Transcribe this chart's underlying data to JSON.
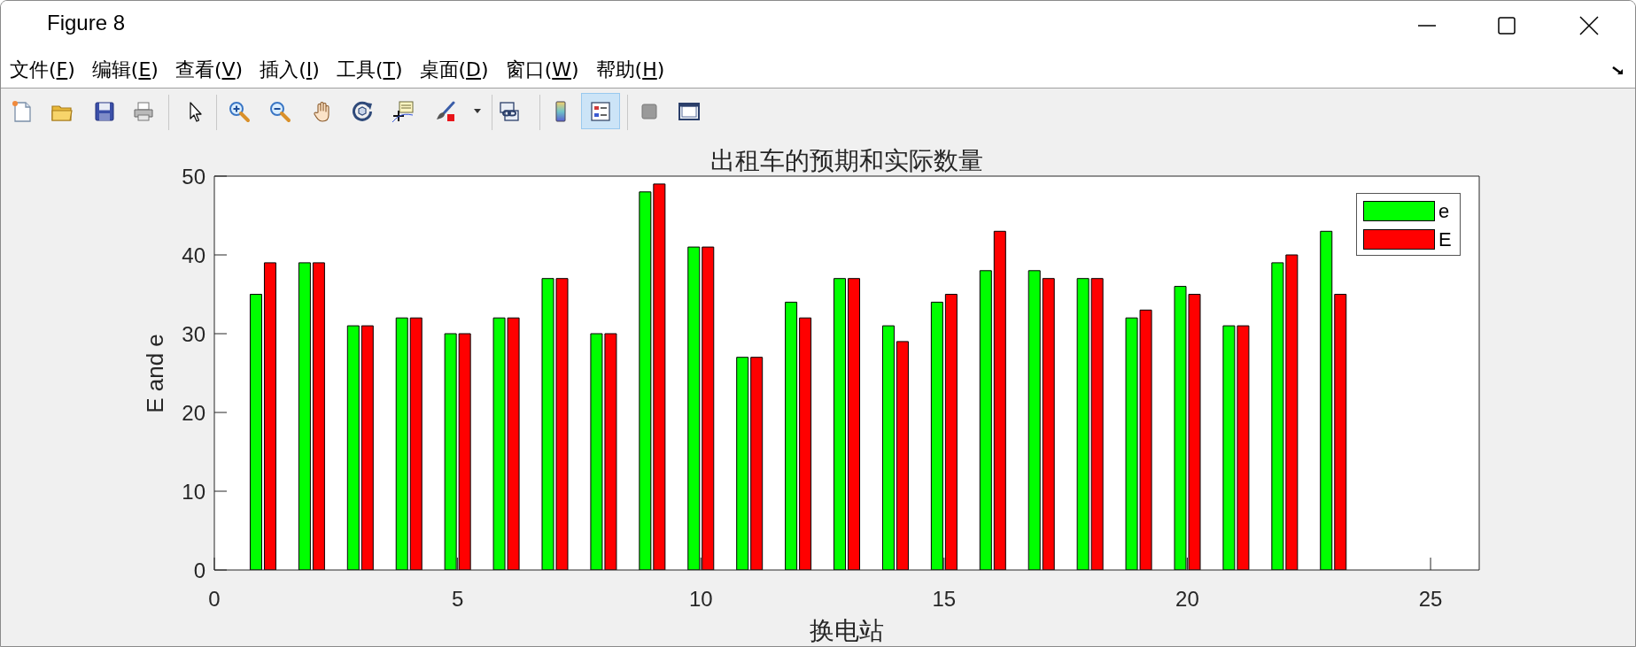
{
  "chart_data": {
    "type": "bar",
    "title": "出租车的预期和实际数量",
    "xlabel": "换电站",
    "ylabel": "E and e",
    "x": [
      1,
      2,
      3,
      4,
      5,
      6,
      7,
      8,
      9,
      10,
      11,
      12,
      13,
      14,
      15,
      16,
      17,
      18,
      19,
      20,
      21,
      22,
      23
    ],
    "series": [
      {
        "name": "e",
        "color": "#00ff00",
        "values": [
          35,
          39,
          31,
          32,
          30,
          32,
          37,
          30,
          48,
          41,
          27,
          34,
          37,
          31,
          34,
          38,
          38,
          37,
          32,
          36,
          31,
          39,
          43
        ]
      },
      {
        "name": "E",
        "color": "#ff0000",
        "values": [
          39,
          39,
          31,
          32,
          30,
          32,
          37,
          30,
          49,
          41,
          27,
          32,
          37,
          29,
          35,
          43,
          37,
          37,
          33,
          35,
          31,
          40,
          35
        ]
      }
    ],
    "xlim": [
      0,
      26
    ],
    "xticks": [
      0,
      5,
      10,
      15,
      20,
      25
    ],
    "ylim": [
      0,
      50
    ],
    "yticks": [
      0,
      10,
      20,
      30,
      40,
      50
    ],
    "legend": "top right",
    "annotations": [
      "Figure 8",
      "文件(F)",
      "编辑(E)",
      "查看(V)",
      "插入(I)",
      "工具(T)",
      "桌面(D)",
      "窗口(W)",
      "帮助(H)"
    ]
  }
}
